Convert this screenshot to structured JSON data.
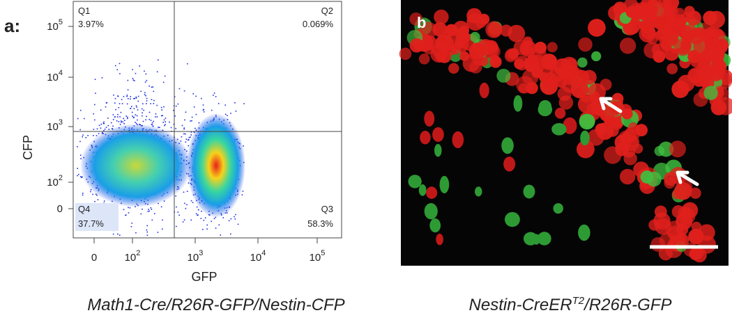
{
  "panel_a": {
    "label": "a:",
    "quadrants": [
      {
        "name": "Q1",
        "percent": "3.97%"
      },
      {
        "name": "Q2",
        "percent": "0.069%"
      },
      {
        "name": "Q4",
        "percent": "37.7%"
      },
      {
        "name": "Q3",
        "percent": "58.3%"
      }
    ],
    "y_axis": {
      "title": "CFP",
      "ticks": [
        {
          "base": "10",
          "exp": "5"
        },
        {
          "base": "10",
          "exp": "4"
        },
        {
          "base": "10",
          "exp": "3"
        },
        {
          "base": "10",
          "exp": "2"
        },
        {
          "base": "0"
        }
      ]
    },
    "x_axis": {
      "title": "GFP",
      "ticks": [
        {
          "base": "0"
        },
        {
          "base": "10",
          "exp": "2"
        },
        {
          "base": "10",
          "exp": "3"
        },
        {
          "base": "10",
          "exp": "4"
        },
        {
          "base": "10",
          "exp": "5"
        }
      ]
    },
    "caption": "Math1-Cre/R26R-GFP/Nestin-CFP"
  },
  "panel_b": {
    "label": "b",
    "caption": {
      "main": "Nestin-CreER",
      "sup": "T2",
      "rest": "/R26R-GFP"
    }
  }
}
